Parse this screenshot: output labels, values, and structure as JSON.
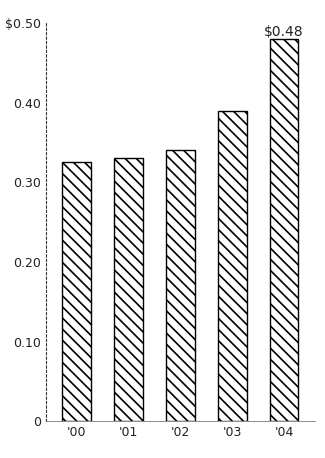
{
  "chart_data": {
    "type": "bar",
    "categories": [
      "'00",
      "'01",
      "'02",
      "'03",
      "'04"
    ],
    "values": [
      0.325,
      0.33,
      0.34,
      0.39,
      0.48
    ],
    "value_labels": [
      null,
      null,
      null,
      null,
      "$0.48"
    ],
    "data_labels": true,
    "color": "#ffffff",
    "ylim": [
      0,
      0.5
    ],
    "yticks": [
      0,
      {
        "value": 0.1,
        "label": "0.10"
      },
      {
        "value": 0.2,
        "label": "0.20"
      },
      {
        "value": 0.3,
        "label": "0.30"
      },
      {
        "value": 0.4,
        "label": "0.40"
      },
      {
        "value": 0.5,
        "label": "$0.50"
      }
    ],
    "grid": false
  }
}
